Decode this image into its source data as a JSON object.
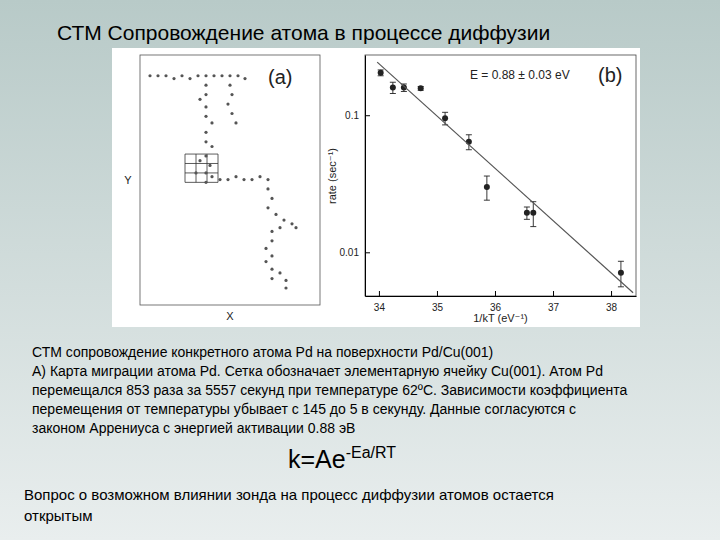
{
  "slide": {
    "title": "СТМ Сопровождение атома в процессе диффузии",
    "caption": [
      "СТМ сопровождение конкретного атома Pd на поверхности Pd/Cu(001)",
      "А) Карта миграции атома Pd. Сетка обозначает элементарную ячейку Cu(001). Атом Pd",
      "перемещался 853 раза за 5557 секунд при температуре 62ºC. Зависимости коэффициента",
      "перемещения от температуры убывает с 145 до 5 в секунду. Данные согласуются с",
      "законом Аррениуса с энергией активации 0.88 эВ"
    ],
    "formula": {
      "base": "k=Ae",
      "exponent": "-Ea/RT"
    },
    "note": [
      "Вопрос о возможном влиянии зонда на процесс диффузии атомов остается",
      "открытым"
    ]
  },
  "chart_data": [
    {
      "type": "scatter",
      "title": "(a)",
      "x_label": "X",
      "y_label": "Y",
      "tick_labels": false,
      "marker": "circle",
      "color": "#555555",
      "xlim": [
        0,
        180
      ],
      "ylim": [
        0,
        265
      ],
      "x": [
        10,
        18,
        26,
        34,
        42,
        50,
        58,
        66,
        74,
        82,
        90,
        98,
        105,
        90,
        92,
        88,
        92,
        96,
        66,
        66,
        60,
        66,
        66,
        72,
        66,
        66,
        72,
        66,
        60,
        70,
        66,
        56,
        72,
        66,
        80,
        88,
        96,
        104,
        112,
        120,
        128,
        128,
        132,
        128,
        136,
        144,
        152,
        156,
        140,
        132,
        132,
        126,
        132,
        126,
        132,
        140,
        132,
        146,
        146
      ],
      "values": [
        243,
        243,
        243,
        240,
        243,
        240,
        243,
        243,
        243,
        243,
        243,
        243,
        240,
        233,
        223,
        213,
        203,
        193,
        233,
        223,
        218,
        210,
        200,
        193,
        183,
        173,
        168,
        158,
        153,
        148,
        140,
        140,
        136,
        130,
        133,
        133,
        136,
        133,
        133,
        136,
        133,
        123,
        113,
        103,
        96,
        90,
        86,
        82,
        82,
        78,
        68,
        60,
        52,
        46,
        38,
        34,
        28,
        26,
        18
      ],
      "cell_grid": {
        "x": [
          45,
          56,
          67,
          78
        ],
        "y": [
          130,
          140,
          150,
          160
        ]
      }
    },
    {
      "type": "scatter",
      "title": "(b)",
      "x_label": "1/kT (eV⁻¹)",
      "y_label": "rate (sec⁻¹)",
      "annotation": "E = 0.88 ± 0.03 eV",
      "log": "y",
      "xlim": [
        33.76,
        38.43
      ],
      "ylim": [
        0.0048,
        0.275
      ],
      "xticks": [
        34,
        35,
        36,
        37,
        38
      ],
      "yticks": [
        0.01,
        0.1
      ],
      "series": [
        {
          "type": "scatter",
          "marker": "circle",
          "color": "#222222",
          "x": [
            34.03,
            34.24,
            34.43,
            34.72,
            35.14,
            35.55,
            35.86,
            36.55,
            36.66,
            38.17
          ],
          "values": [
            0.204,
            0.159,
            0.159,
            0.157,
            0.095,
            0.064,
            0.03,
            0.0194,
            0.0194,
            0.0071
          ],
          "errors": [
            0.01,
            0.015,
            0.01,
            0.005,
            0.01,
            0.008,
            0.006,
            0.002,
            0.004,
            0.0015
          ]
        },
        {
          "type": "line",
          "line_style": "solid",
          "color": "#555555",
          "x": [
            33.97,
            38.38
          ],
          "values": [
            0.244,
            0.00507
          ]
        }
      ]
    }
  ]
}
